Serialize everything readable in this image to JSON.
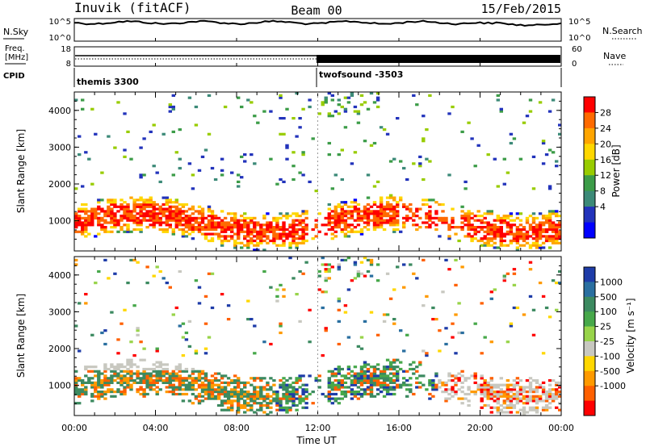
{
  "header": {
    "station": "Inuvik (fitACF)",
    "beam": "Beam 00",
    "date": "15/Feb/2015"
  },
  "top_panels": {
    "nsky_label": "N.Sky",
    "nsearch_label": "N.Search",
    "freq_label_1": "Freq.",
    "freq_label_2": "[MHz]",
    "nave_label": "Nave",
    "cpid_label": "CPID",
    "nsky_ticks": [
      "10^5",
      "10^0"
    ],
    "nsearch_ticks": [
      "10^5",
      "10^0"
    ],
    "freq_ticks": [
      "18",
      "8"
    ],
    "nave_ticks": [
      "60",
      "0"
    ],
    "cpid_segments": [
      {
        "name": "themis 3300",
        "start_hour": 0,
        "end_hour": 12
      },
      {
        "name": "twofsound -3503",
        "start_hour": 12,
        "end_hour": 24
      }
    ]
  },
  "power_colorbar": {
    "label": "Power [dB]",
    "ticks": [
      "28",
      "24",
      "20",
      "16",
      "12",
      "8",
      "4"
    ],
    "colors": [
      "#ff0000",
      "#ff6a00",
      "#ffa500",
      "#ffd700",
      "#98cc00",
      "#3c9c48",
      "#3c8a78",
      "#2233bb",
      "#0000ff"
    ]
  },
  "velocity_colorbar": {
    "label": "Velocity [m s⁻¹]",
    "ticks": [
      "1000",
      "500",
      "100",
      "25",
      "-25",
      "-100",
      "-500",
      "-1000"
    ],
    "colors": [
      "#1e3ca8",
      "#2a6fa0",
      "#3c8a60",
      "#47a84a",
      "#98d44a",
      "#c8c8c0",
      "#ffd700",
      "#ff9a00",
      "#ff6000",
      "#ff0000"
    ]
  },
  "chart_data": [
    {
      "type": "heatmap",
      "title": "Power",
      "xlabel": "Time UT",
      "ylabel": "Slant Range [km]",
      "x_ticks": [
        "00:00",
        "04:00",
        "08:00",
        "12:00",
        "16:00",
        "20:00",
        "00:00"
      ],
      "y_ticks": [
        "1000",
        "2000",
        "3000",
        "4000"
      ],
      "xlim": [
        0,
        24
      ],
      "ylim": [
        180,
        4500
      ],
      "colorbar_label": "Power [dB]",
      "colorbar_range": [
        0,
        30
      ]
    },
    {
      "type": "heatmap",
      "title": "Velocity",
      "xlabel": "Time UT",
      "ylabel": "Slant Range [km]",
      "x_ticks": [
        "00:00",
        "04:00",
        "08:00",
        "12:00",
        "16:00",
        "20:00",
        "00:00"
      ],
      "y_ticks": [
        "1000",
        "2000",
        "3000",
        "4000"
      ],
      "xlim": [
        0,
        24
      ],
      "ylim": [
        180,
        4500
      ],
      "colorbar_label": "Velocity [m s⁻¹]",
      "colorbar_range": [
        -1000,
        1000
      ]
    }
  ]
}
